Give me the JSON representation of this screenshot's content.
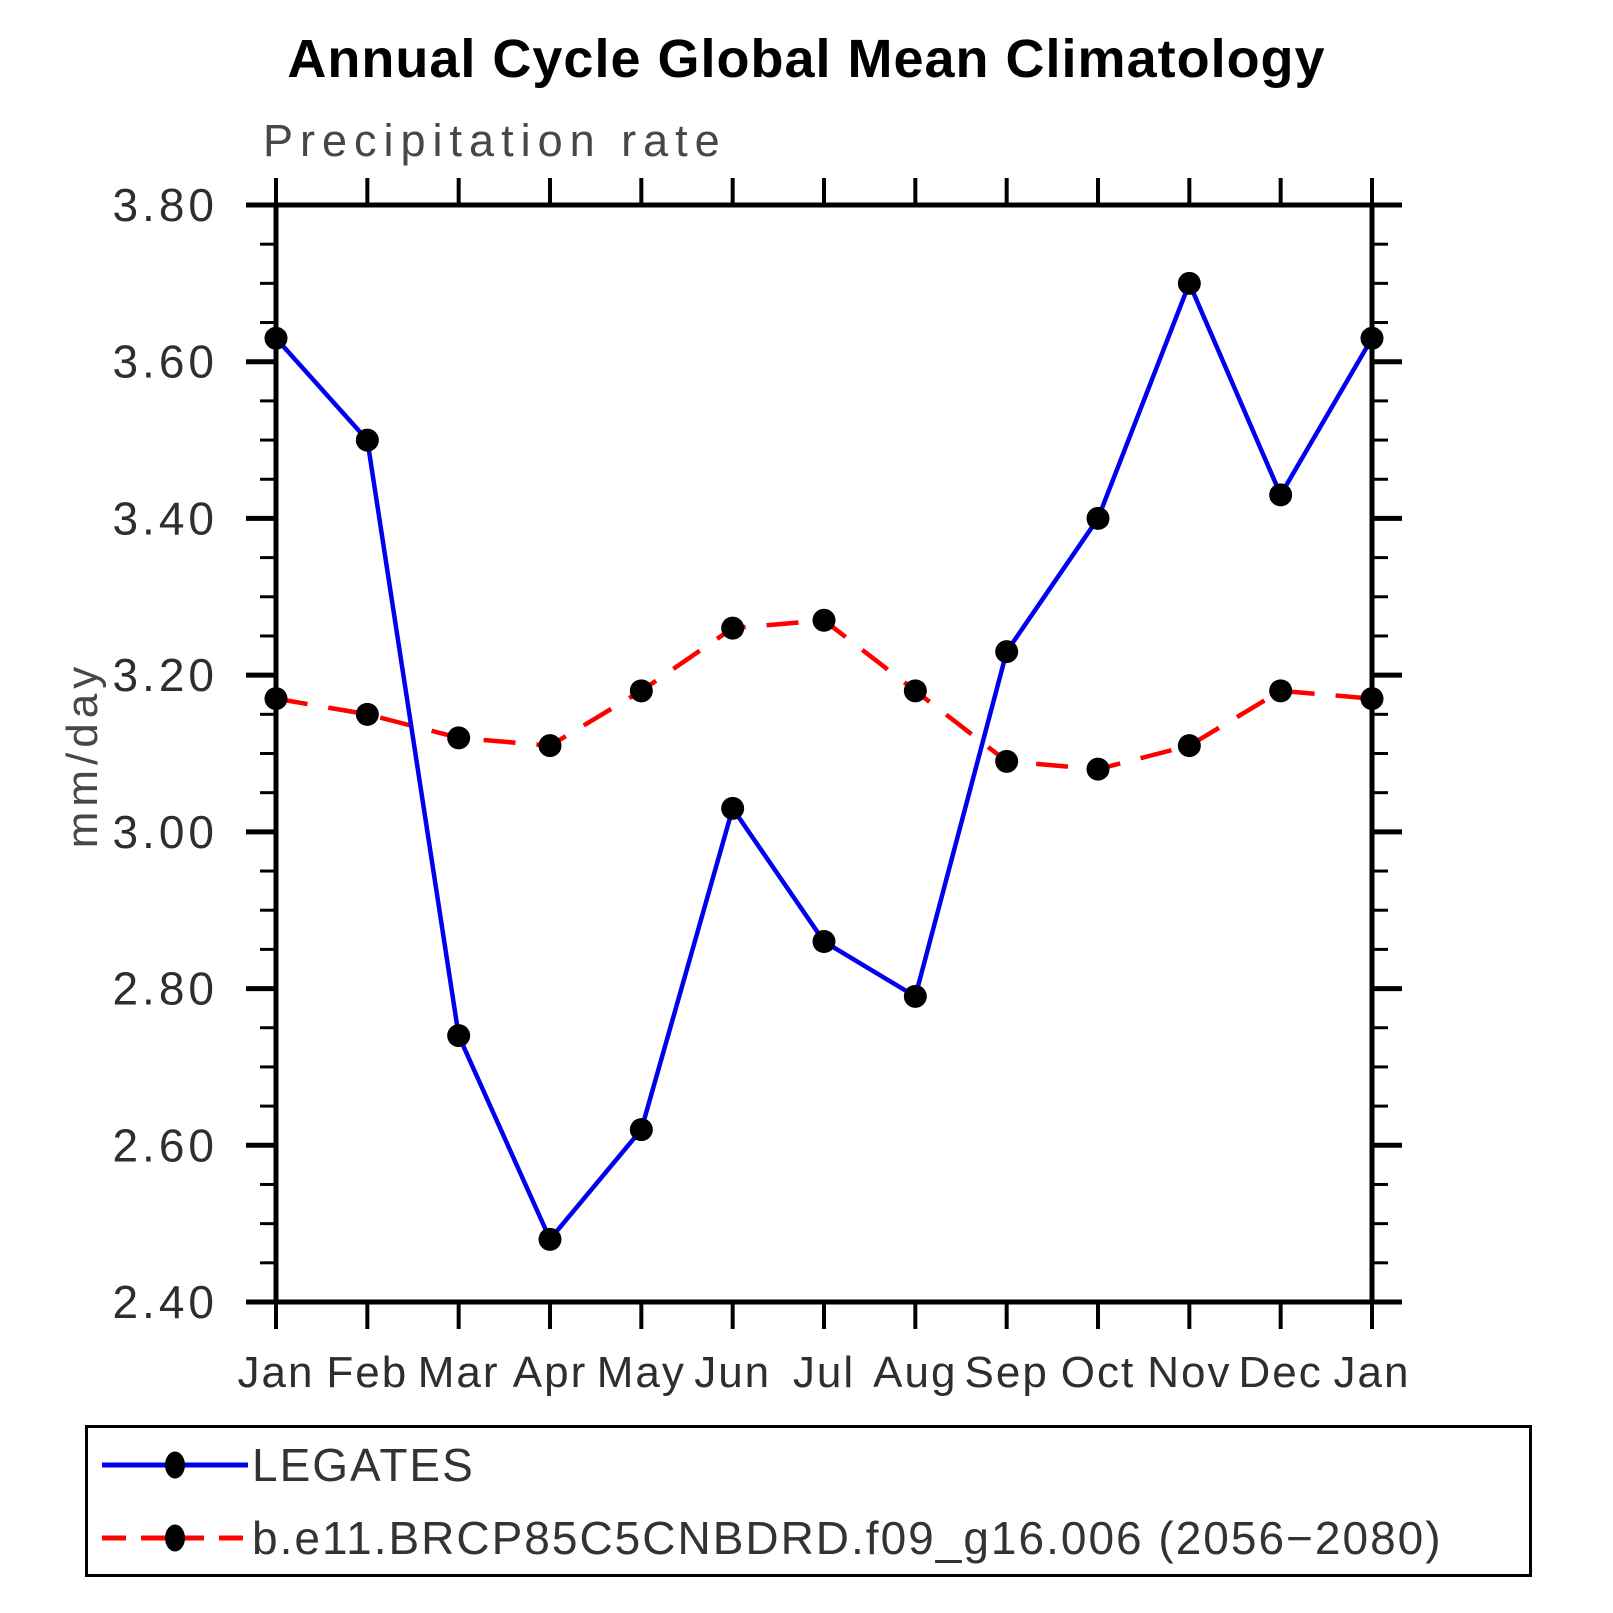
{
  "page": {
    "title": "Annual Cycle Global Mean Climatology",
    "subtitle": "Precipitation rate",
    "ylabel": "mm/day"
  },
  "colors": {
    "axis": "#000000",
    "title_text": "#000000",
    "muted_text": "#474747",
    "tick_text": "#2e2e2e",
    "legates_line": "#0000ee",
    "model_line": "#ff0000",
    "marker": "#000000"
  },
  "chart_data": {
    "type": "line",
    "title": "Annual Cycle Global Mean Climatology",
    "subtitle": "Precipitation rate",
    "xlabel": "",
    "ylabel": "mm/day",
    "categories": [
      "Jan",
      "Feb",
      "Mar",
      "Apr",
      "May",
      "Jun",
      "Jul",
      "Aug",
      "Sep",
      "Oct",
      "Nov",
      "Dec",
      "Jan"
    ],
    "ylim": [
      2.4,
      3.8
    ],
    "ytick_step": 0.2,
    "yminor_step": 0.05,
    "grid": false,
    "legend_position": "bottom",
    "series": [
      {
        "name": "LEGATES",
        "line_style": "solid",
        "color": "#0000ee",
        "marker": "circle",
        "marker_color": "#000000",
        "values": [
          3.63,
          3.5,
          2.74,
          2.48,
          2.62,
          3.03,
          2.86,
          2.79,
          3.23,
          3.4,
          3.7,
          3.43,
          3.63
        ]
      },
      {
        "name": "b.e11.BRCP85C5CNBDRD.f09_g16.006 (2056−2080)",
        "line_style": "dashed",
        "color": "#ff0000",
        "marker": "circle",
        "marker_color": "#000000",
        "values": [
          3.17,
          3.15,
          3.12,
          3.11,
          3.18,
          3.26,
          3.27,
          3.18,
          3.09,
          3.08,
          3.11,
          3.18,
          3.17
        ]
      }
    ]
  }
}
